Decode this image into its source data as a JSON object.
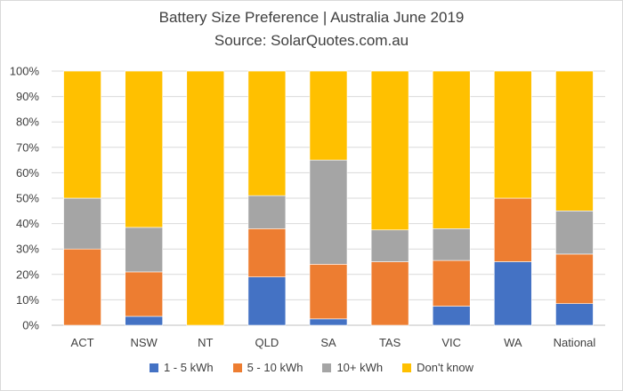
{
  "chart_data": {
    "type": "bar",
    "stacked": true,
    "title": "Battery Size Preference  | Australia June 2019",
    "subtitle": "Source: SolarQuotes.com.au",
    "categories": [
      "ACT",
      "NSW",
      "NT",
      "QLD",
      "SA",
      "TAS",
      "VIC",
      "WA",
      "National"
    ],
    "ylim": [
      0,
      100
    ],
    "yticks": [
      0,
      10,
      20,
      30,
      40,
      50,
      60,
      70,
      80,
      90,
      100
    ],
    "ytick_suffix": "%",
    "grid": true,
    "legend_position": "bottom",
    "series": [
      {
        "name": "1 - 5 kWh",
        "color": "#4472c4",
        "values": [
          0,
          3.5,
          0,
          19,
          2.5,
          0,
          7.5,
          25,
          8.5
        ]
      },
      {
        "name": "5 - 10 kWh",
        "color": "#ed7d31",
        "values": [
          30,
          17.5,
          0,
          19,
          21.5,
          25,
          18,
          25,
          19.5
        ]
      },
      {
        "name": "10+ kWh",
        "color": "#a5a5a5",
        "values": [
          20,
          17.5,
          0,
          13,
          41,
          12.5,
          12.5,
          0,
          17
        ]
      },
      {
        "name": "Don't know",
        "color": "#ffc000",
        "values": [
          50,
          61.5,
          100,
          49,
          35,
          62.5,
          62,
          50,
          55
        ]
      }
    ]
  }
}
